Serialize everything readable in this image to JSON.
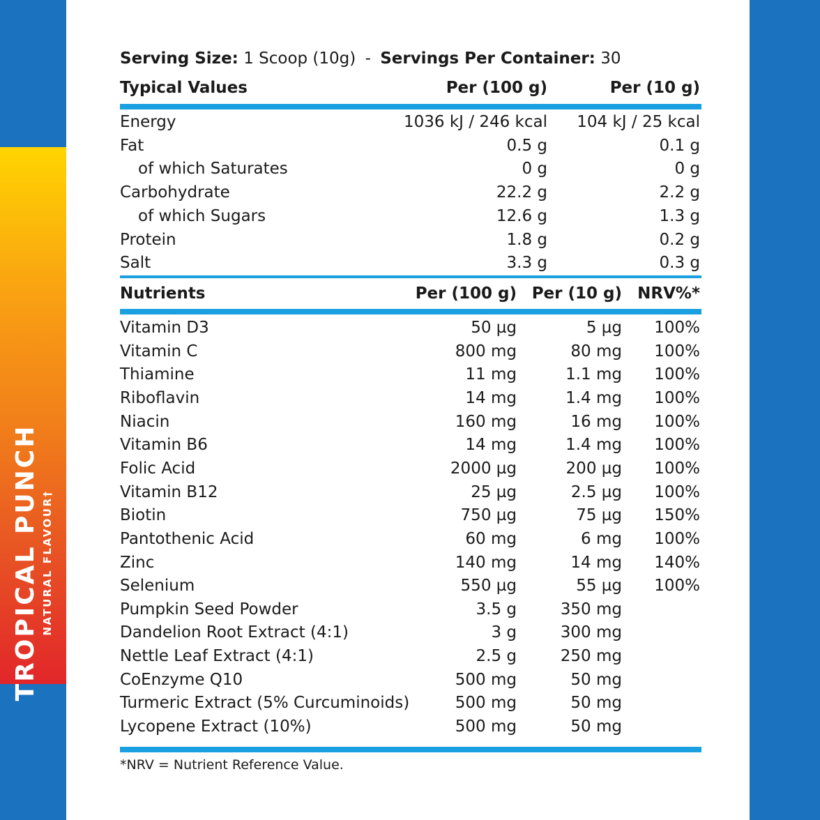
{
  "flavour": {
    "name": "TROPICAL PUNCH",
    "subtitle": "NATURAL FLAVOUR†"
  },
  "colors": {
    "side_blue": "#1b72be",
    "rule_blue": "#1aa0e0",
    "band_top": "#ffd400",
    "band_bottom": "#e2262a"
  },
  "serving": {
    "size_label": "Serving Size:",
    "size_value": "1 Scoop (10g)",
    "separator": "-",
    "servings_label": "Servings Per Container:",
    "servings_value": "30"
  },
  "typical": {
    "headers": {
      "name": "Typical Values",
      "per100": "Per (100 g)",
      "per10": "Per (10 g)"
    },
    "rows": [
      {
        "name": "Energy",
        "per100": "1036 kJ / 246 kcal",
        "per10": "104 kJ / 25 kcal",
        "indent": false
      },
      {
        "name": "Fat",
        "per100": "0.5 g",
        "per10": "0.1 g",
        "indent": false
      },
      {
        "name": "of which Saturates",
        "per100": "0 g",
        "per10": "0 g",
        "indent": true
      },
      {
        "name": "Carbohydrate",
        "per100": "22.2 g",
        "per10": "2.2 g",
        "indent": false
      },
      {
        "name": "of which Sugars",
        "per100": "12.6 g",
        "per10": "1.3 g",
        "indent": true
      },
      {
        "name": "Protein",
        "per100": "1.8 g",
        "per10": "0.2 g",
        "indent": false
      },
      {
        "name": "Salt",
        "per100": "3.3 g",
        "per10": "0.3 g",
        "indent": false
      }
    ]
  },
  "nutrients": {
    "headers": {
      "name": "Nutrients",
      "per100": "Per (100 g)",
      "per10": "Per (10 g)",
      "nrv": "NRV%*"
    },
    "rows": [
      {
        "name": "Vitamin D3",
        "per100": "50 µg",
        "per10": "5 µg",
        "nrv": "100%"
      },
      {
        "name": "Vitamin C",
        "per100": "800 mg",
        "per10": "80 mg",
        "nrv": "100%"
      },
      {
        "name": "Thiamine",
        "per100": "11 mg",
        "per10": "1.1 mg",
        "nrv": "100%"
      },
      {
        "name": "Riboflavin",
        "per100": "14 mg",
        "per10": "1.4 mg",
        "nrv": "100%"
      },
      {
        "name": "Niacin",
        "per100": "160 mg",
        "per10": "16 mg",
        "nrv": "100%"
      },
      {
        "name": "Vitamin B6",
        "per100": "14 mg",
        "per10": "1.4 mg",
        "nrv": "100%"
      },
      {
        "name": "Folic Acid",
        "per100": "2000 µg",
        "per10": "200 µg",
        "nrv": "100%"
      },
      {
        "name": "Vitamin B12",
        "per100": "25 µg",
        "per10": "2.5 µg",
        "nrv": "100%"
      },
      {
        "name": "Biotin",
        "per100": "750 µg",
        "per10": "75 µg",
        "nrv": "150%"
      },
      {
        "name": "Pantothenic Acid",
        "per100": "60 mg",
        "per10": "6 mg",
        "nrv": "100%"
      },
      {
        "name": "Zinc",
        "per100": "140 mg",
        "per10": "14 mg",
        "nrv": "140%"
      },
      {
        "name": "Selenium",
        "per100": "550 µg",
        "per10": "55 µg",
        "nrv": "100%"
      },
      {
        "name": "Pumpkin Seed Powder",
        "per100": "3.5 g",
        "per10": "350 mg",
        "nrv": ""
      },
      {
        "name": "Dandelion Root Extract (4:1)",
        "per100": "3 g",
        "per10": "300 mg",
        "nrv": ""
      },
      {
        "name": "Nettle Leaf Extract (4:1)",
        "per100": "2.5 g",
        "per10": "250 mg",
        "nrv": ""
      },
      {
        "name": "CoEnzyme Q10",
        "per100": "500 mg",
        "per10": "50 mg",
        "nrv": ""
      },
      {
        "name": "Turmeric Extract (5% Curcuminoids)",
        "per100": "500 mg",
        "per10": "50 mg",
        "nrv": ""
      },
      {
        "name": "Lycopene Extract (10%)",
        "per100": "500 mg",
        "per10": "50 mg",
        "nrv": ""
      }
    ]
  },
  "footnote": "*NRV = Nutrient Reference Value."
}
